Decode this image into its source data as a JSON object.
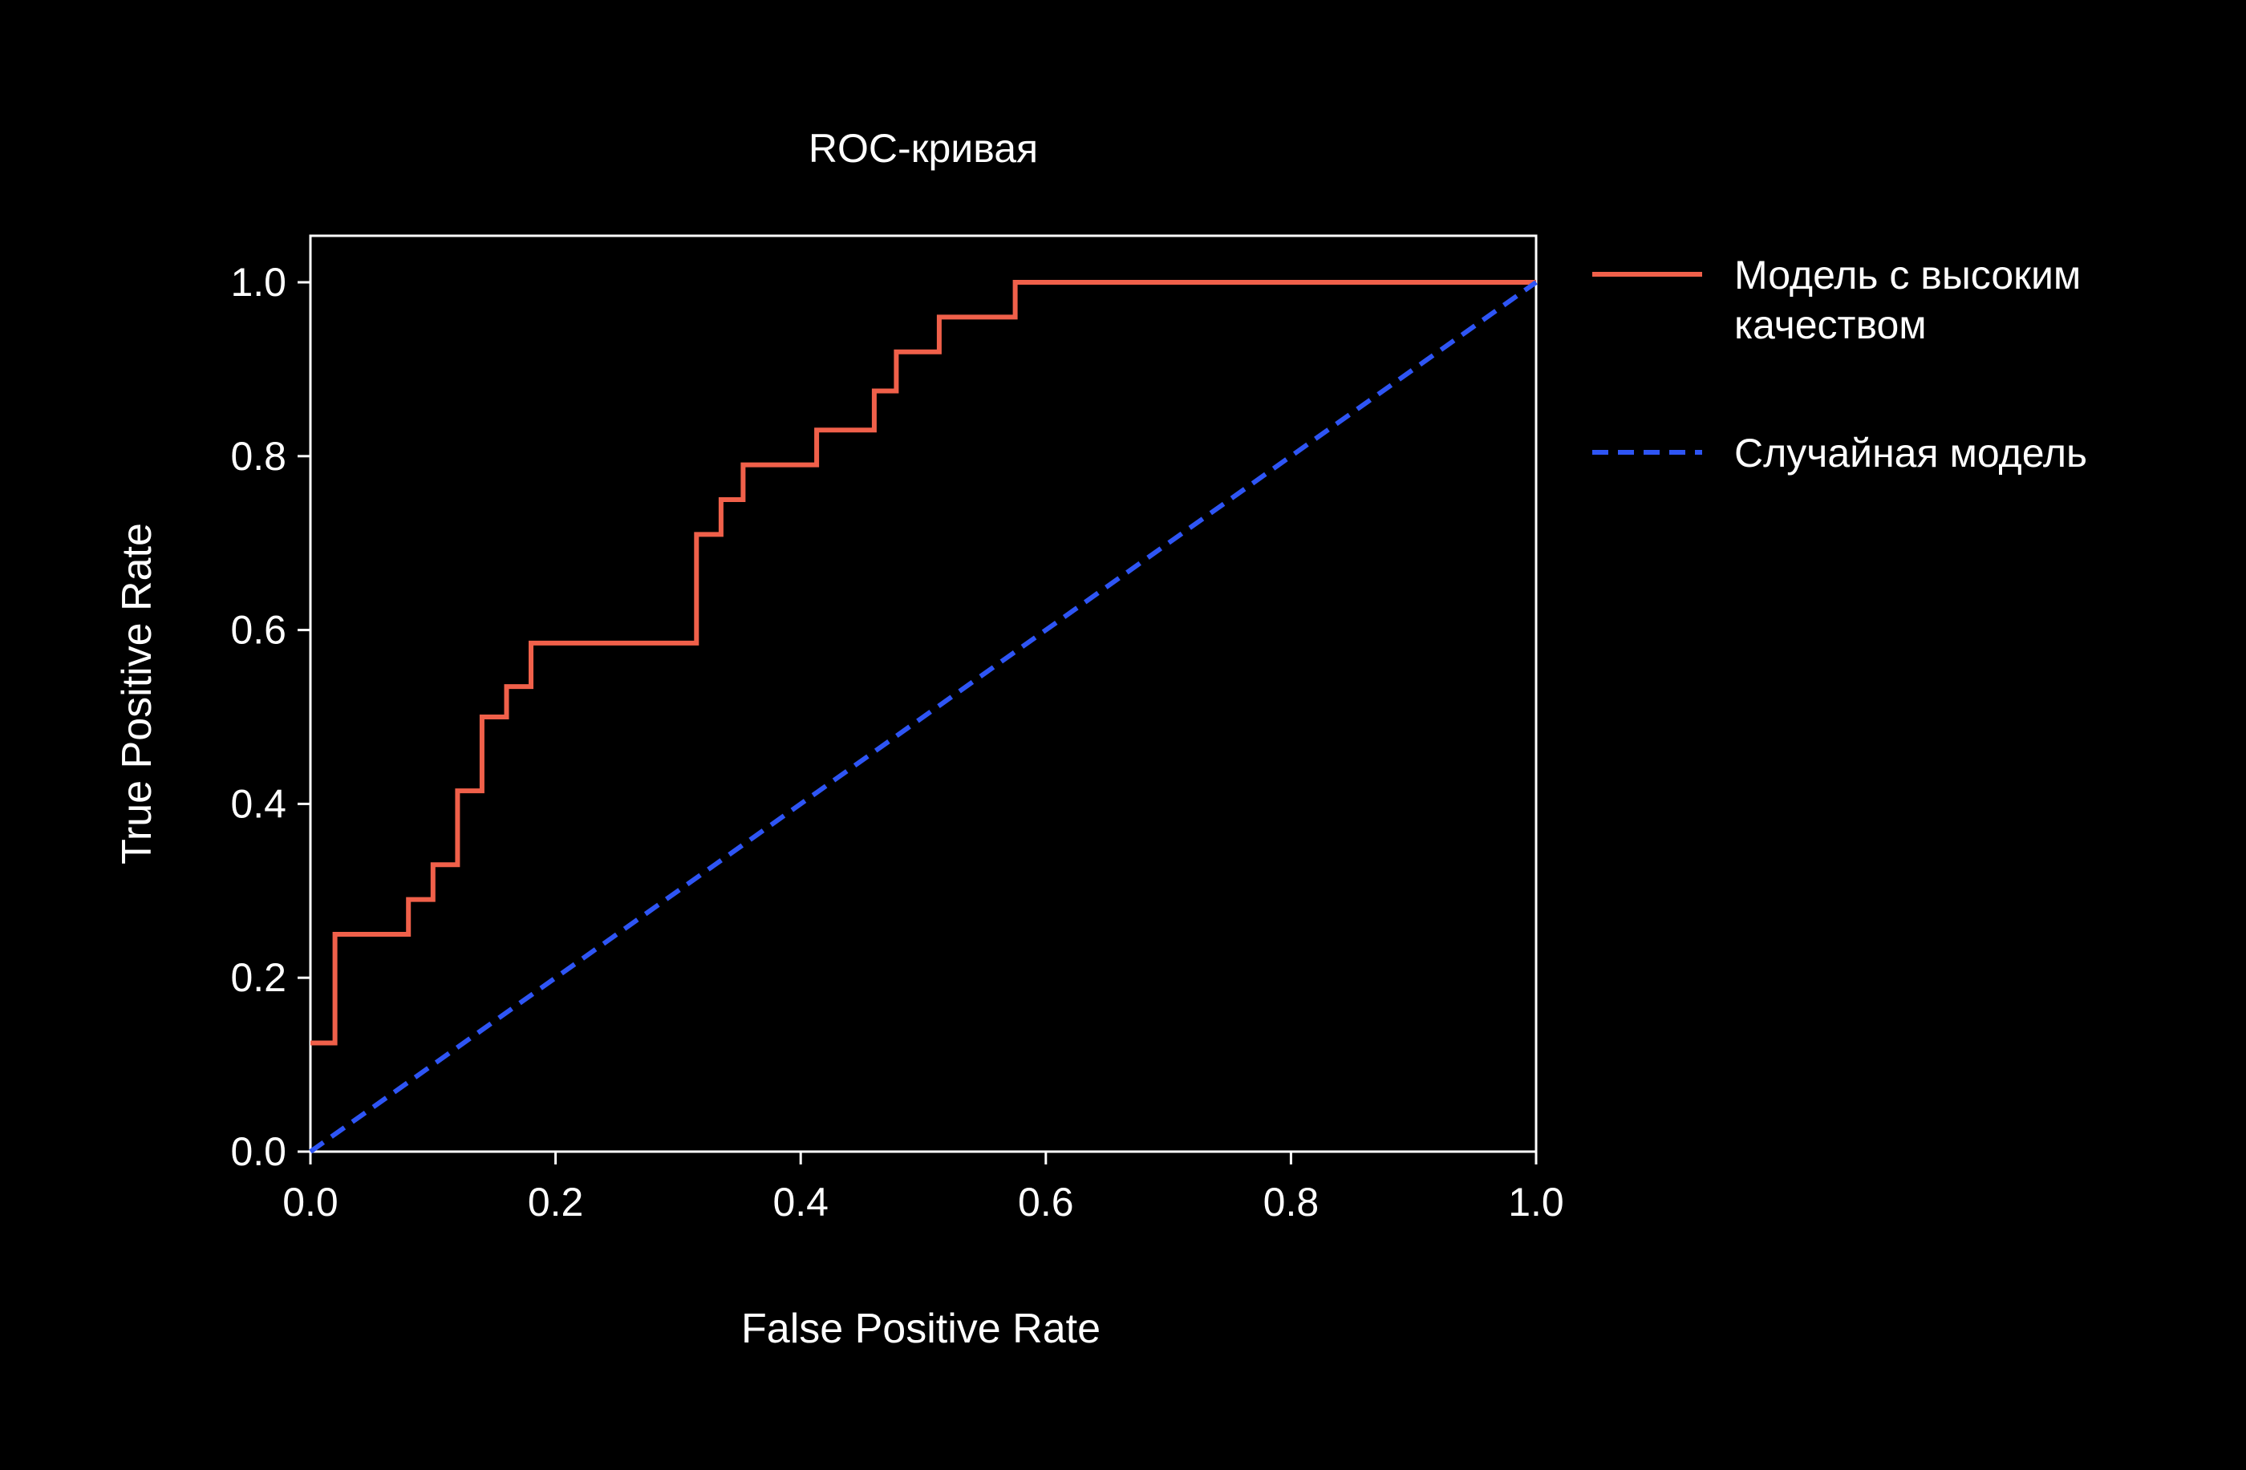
{
  "chart_data": {
    "type": "line",
    "title": "ROC-кривая",
    "xlabel": "False Positive Rate",
    "ylabel": "True Positive Rate",
    "xlim": [
      0,
      1
    ],
    "ylim": [
      0,
      1.05
    ],
    "grid": false,
    "legend_position": "right",
    "xticks": [
      "0.0",
      "0.2",
      "0.4",
      "0.6",
      "0.8",
      "1.0"
    ],
    "yticks": [
      "0.0",
      "0.2",
      "0.4",
      "0.6",
      "0.8",
      "1.0"
    ],
    "series": [
      {
        "name": "Модель с высоким качеством",
        "name_lines": [
          "Модель с высоким",
          "качеством"
        ],
        "style": "solid",
        "color": "#f0604a",
        "x": [
          0,
          0.02,
          0.02,
          0.08,
          0.08,
          0.1,
          0.1,
          0.12,
          0.12,
          0.14,
          0.14,
          0.16,
          0.16,
          0.18,
          0.18,
          0.315,
          0.315,
          0.335,
          0.335,
          0.353,
          0.353,
          0.413,
          0.413,
          0.46,
          0.46,
          0.478,
          0.478,
          0.513,
          0.513,
          0.575,
          0.575,
          1.0
        ],
        "y": [
          0.125,
          0.125,
          0.25,
          0.25,
          0.29,
          0.29,
          0.33,
          0.33,
          0.415,
          0.415,
          0.5,
          0.5,
          0.535,
          0.535,
          0.585,
          0.585,
          0.71,
          0.71,
          0.75,
          0.75,
          0.79,
          0.79,
          0.83,
          0.83,
          0.875,
          0.875,
          0.92,
          0.92,
          0.96,
          0.96,
          1.0,
          1.0
        ]
      },
      {
        "name": "Случайная модель",
        "name_lines": [
          "Случайная модель"
        ],
        "style": "dashed",
        "color": "#2e55f5",
        "x": [
          0,
          1
        ],
        "y": [
          0,
          1
        ]
      }
    ]
  }
}
